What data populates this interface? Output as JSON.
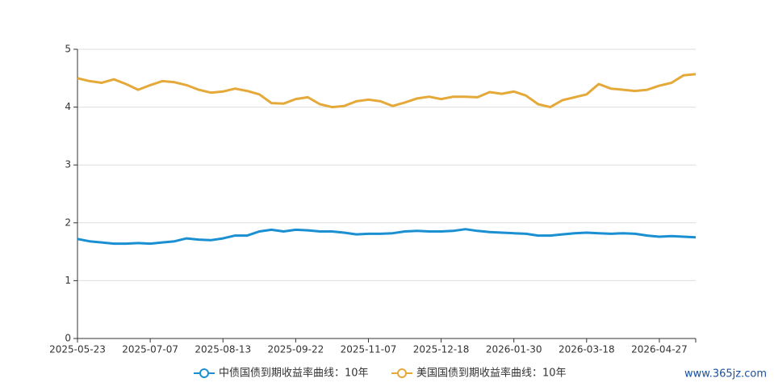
{
  "chart_data": {
    "type": "line",
    "categories": [
      "2025-05-23",
      null,
      null,
      null,
      null,
      null,
      "2025-07-07",
      null,
      null,
      null,
      null,
      null,
      "2025-08-13",
      null,
      null,
      null,
      null,
      null,
      "2025-09-22",
      null,
      null,
      null,
      null,
      null,
      "2025-11-07",
      null,
      null,
      null,
      null,
      null,
      "2025-12-18",
      null,
      null,
      null,
      null,
      null,
      "2026-01-30",
      null,
      null,
      null,
      null,
      null,
      "2026-03-18",
      null,
      null,
      null,
      null,
      null,
      "2026-04-27",
      null,
      null,
      null
    ],
    "series": [
      {
        "name": "中债国债到期收益率曲线：10年",
        "color": "#1a8fd1",
        "values": [
          1.72,
          1.68,
          1.66,
          1.64,
          1.64,
          1.65,
          1.64,
          1.66,
          1.68,
          1.73,
          1.71,
          1.7,
          1.73,
          1.78,
          1.78,
          1.85,
          1.88,
          1.85,
          1.88,
          1.87,
          1.85,
          1.85,
          1.83,
          1.8,
          1.81,
          1.81,
          1.82,
          1.85,
          1.86,
          1.85,
          1.85,
          1.86,
          1.89,
          1.86,
          1.84,
          1.83,
          1.82,
          1.81,
          1.78,
          1.78,
          1.8,
          1.82,
          1.83,
          1.82,
          1.81,
          1.82,
          1.81,
          1.78,
          1.76,
          1.77,
          1.76,
          1.75
        ]
      },
      {
        "name": "美国国债到期收益率曲线：10年",
        "color": "#e5a93a",
        "values": [
          4.5,
          4.45,
          4.42,
          4.48,
          4.4,
          4.3,
          4.38,
          4.45,
          4.43,
          4.38,
          4.3,
          4.25,
          4.27,
          4.32,
          4.28,
          4.22,
          4.07,
          4.06,
          4.14,
          4.17,
          4.05,
          4.0,
          4.02,
          4.1,
          4.13,
          4.1,
          4.02,
          4.08,
          4.15,
          4.18,
          4.14,
          4.18,
          4.18,
          4.17,
          4.26,
          4.23,
          4.27,
          4.2,
          4.05,
          4.0,
          4.12,
          4.17,
          4.22,
          4.4,
          4.32,
          4.3,
          4.28,
          4.3,
          4.37,
          4.42,
          4.55,
          4.57
        ]
      }
    ],
    "ylim": [
      0,
      5
    ],
    "yticks": [
      0,
      1,
      2,
      3,
      4,
      5
    ],
    "grid": true,
    "watermark": "www.365jz.com"
  }
}
